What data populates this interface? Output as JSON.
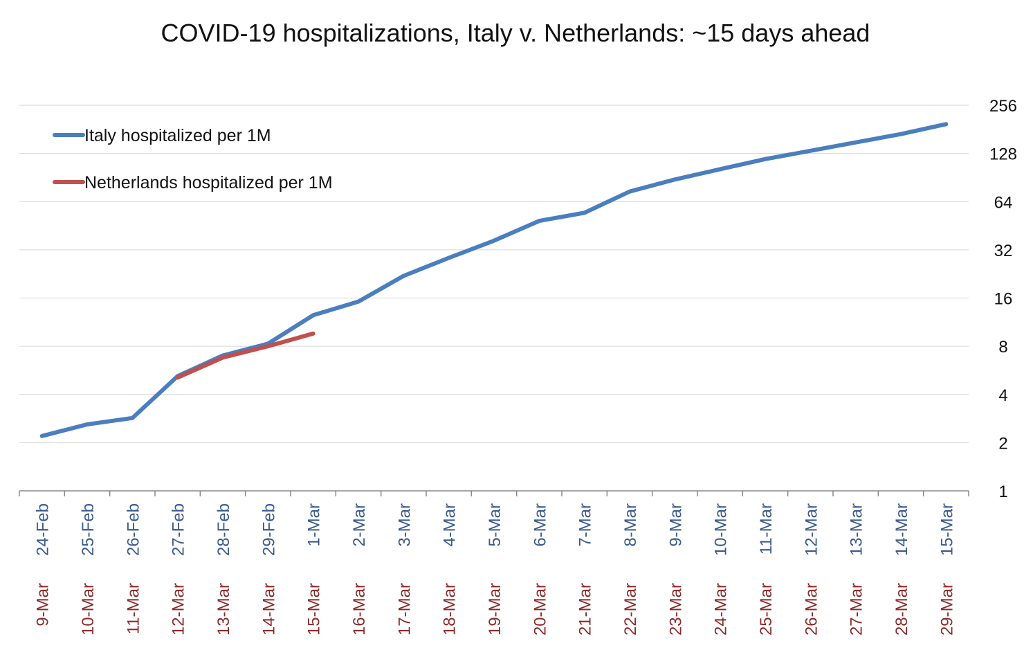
{
  "chart_data": {
    "type": "line",
    "title": "COVID-19 hospitalizations, Italy v. Netherlands: ~15 days ahead",
    "y_scale": "log2",
    "ylim": [
      1,
      256
    ],
    "y_ticks": [
      "1",
      "2",
      "4",
      "8",
      "16",
      "32",
      "64",
      "128",
      "256"
    ],
    "y_axis_side": "right",
    "grid": "horizontal",
    "legend_position": "top-left",
    "categories_primary": [
      "24-Feb",
      "25-Feb",
      "26-Feb",
      "27-Feb",
      "28-Feb",
      "29-Feb",
      "1-Mar",
      "2-Mar",
      "3-Mar",
      "4-Mar",
      "5-Mar",
      "6-Mar",
      "7-Mar",
      "8-Mar",
      "9-Mar",
      "10-Mar",
      "11-Mar",
      "12-Mar",
      "13-Mar",
      "14-Mar",
      "15-Mar"
    ],
    "categories_secondary": [
      "9-Mar",
      "10-Mar",
      "11-Mar",
      "12-Mar",
      "13-Mar",
      "14-Mar",
      "15-Mar",
      "16-Mar",
      "17-Mar",
      "18-Mar",
      "19-Mar",
      "20-Mar",
      "21-Mar",
      "22-Mar",
      "23-Mar",
      "24-Mar",
      "25-Mar",
      "26-Mar",
      "27-Mar",
      "28-Mar",
      "29-Mar"
    ],
    "primary_label_color": "#3a5a8c",
    "secondary_label_color": "#8b2b2b",
    "series": [
      {
        "name": "Italy hospitalized per 1M",
        "color": "#4a7ebf",
        "values": [
          2.2,
          2.6,
          2.85,
          5.2,
          7.0,
          8.3,
          12.5,
          15.2,
          22.0,
          28.5,
          36.5,
          48.5,
          54.5,
          74.0,
          88.0,
          102.0,
          118.0,
          133.0,
          150.0,
          169.0,
          195.0
        ]
      },
      {
        "name": "Netherlands hospitalized per 1M",
        "color": "#c0504d",
        "values": [
          null,
          null,
          null,
          5.1,
          6.8,
          8.0,
          9.6
        ]
      }
    ]
  }
}
